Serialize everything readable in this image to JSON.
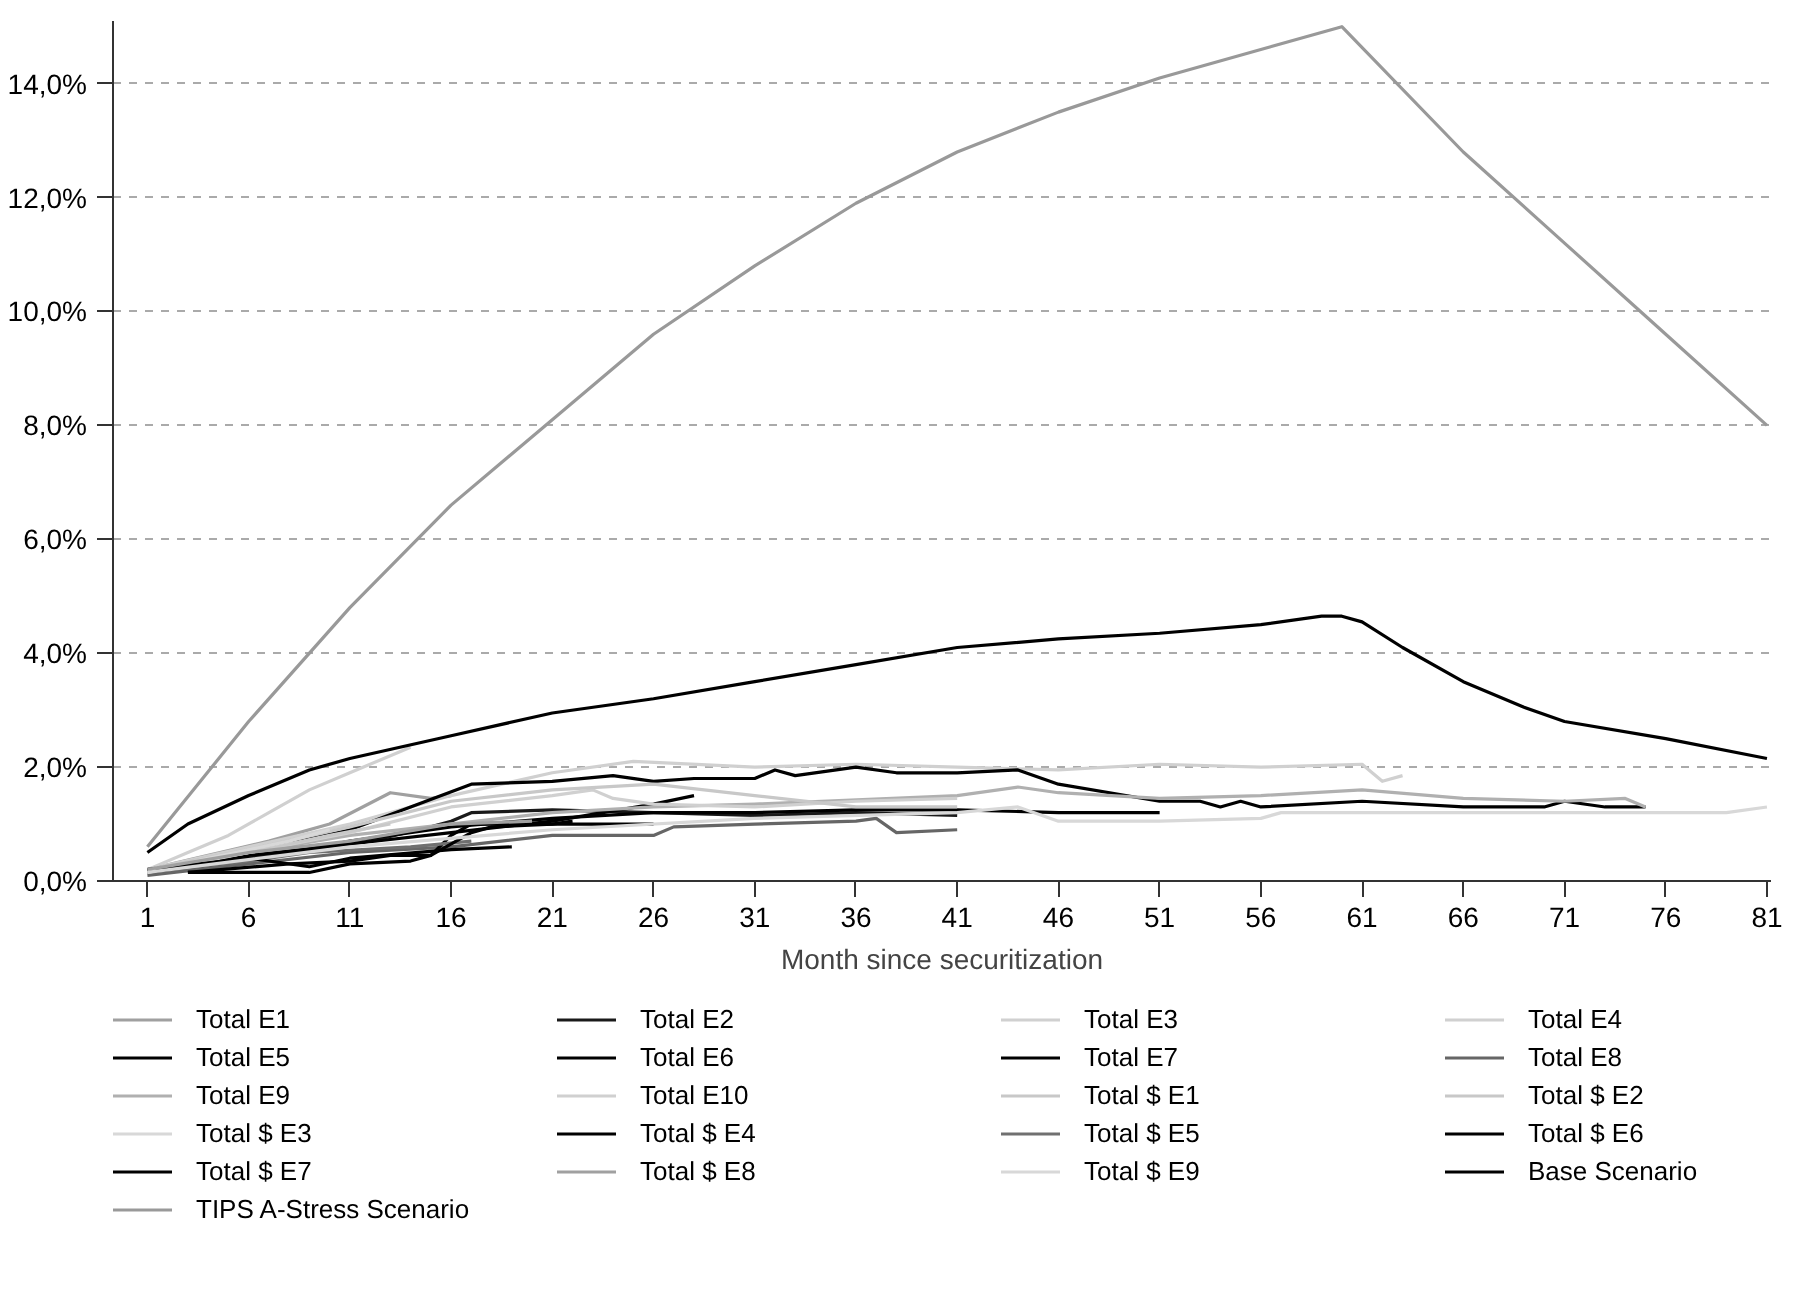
{
  "chart_data": {
    "type": "line",
    "xlabel": "Month since securitization",
    "xlim": [
      -0.7,
      81.2
    ],
    "ylim": [
      0,
      15.1
    ],
    "xticks": [
      1,
      6,
      11,
      16,
      21,
      26,
      31,
      36,
      41,
      46,
      51,
      56,
      61,
      66,
      71,
      76,
      81
    ],
    "yticks": [
      {
        "value": 0,
        "label": "0,0%"
      },
      {
        "value": 2,
        "label": "2,0%"
      },
      {
        "value": 4,
        "label": "4,0%"
      },
      {
        "value": 6,
        "label": "6,0%"
      },
      {
        "value": 8,
        "label": "8,0%"
      },
      {
        "value": 10,
        "label": "10,0%"
      },
      {
        "value": 12,
        "label": "12,0%"
      },
      {
        "value": 14,
        "label": "14,0%"
      }
    ],
    "grid": "y",
    "legend": "bottom",
    "line_style": "solid",
    "series": [
      {
        "name": "Total E1",
        "color": "#a0a0a0",
        "x": [
          1,
          4,
          7,
          10,
          13,
          15,
          16
        ],
        "values": [
          0.2,
          0.45,
          0.7,
          1.0,
          1.55,
          1.45,
          1.5
        ]
      },
      {
        "name": "Total E2",
        "color": "#1a1a1a",
        "x": [
          2,
          8,
          12,
          15,
          16,
          17,
          21,
          26,
          31,
          36,
          41
        ],
        "values": [
          0.2,
          0.5,
          0.7,
          0.95,
          1.05,
          1.2,
          1.25,
          1.2,
          1.15,
          1.2,
          1.15
        ]
      },
      {
        "name": "Total E3",
        "color": "#d0d0d0",
        "x": [
          1,
          3,
          5,
          7,
          9,
          11,
          14
        ],
        "values": [
          0.2,
          0.5,
          0.8,
          1.2,
          1.6,
          1.9,
          2.35
        ]
      },
      {
        "name": "Total E4",
        "color": "#d0d0d0",
        "x": [
          1,
          6,
          11,
          16,
          21,
          25,
          31,
          36,
          41,
          46,
          51,
          56,
          61,
          62,
          63
        ],
        "values": [
          0.2,
          0.6,
          1.0,
          1.5,
          1.9,
          2.1,
          2.0,
          2.05,
          2.0,
          1.95,
          2.05,
          2.0,
          2.05,
          1.75,
          1.85
        ]
      },
      {
        "name": "Total E5",
        "color": "#000000",
        "x": [
          1,
          6,
          11,
          14,
          17,
          21,
          24,
          26,
          28,
          31,
          32,
          33,
          36,
          38,
          41,
          44,
          46,
          51,
          53,
          54,
          55,
          56,
          61,
          66,
          70,
          71,
          73,
          75
        ],
        "values": [
          0.2,
          0.5,
          0.9,
          1.3,
          1.7,
          1.75,
          1.85,
          1.75,
          1.8,
          1.8,
          1.95,
          1.85,
          2.0,
          1.9,
          1.9,
          1.95,
          1.7,
          1.4,
          1.4,
          1.3,
          1.4,
          1.3,
          1.4,
          1.3,
          1.3,
          1.4,
          1.3,
          1.3
        ]
      },
      {
        "name": "Total E6",
        "color": "#000000",
        "x": [
          1,
          6,
          11,
          16,
          21,
          26,
          28
        ],
        "values": [
          0.2,
          0.45,
          0.65,
          0.85,
          1.05,
          1.35,
          1.5
        ]
      },
      {
        "name": "Total E7",
        "color": "#000000",
        "x": [
          1,
          6,
          11,
          16,
          21,
          26,
          31,
          36,
          41,
          46,
          51
        ],
        "values": [
          0.15,
          0.35,
          0.7,
          0.95,
          1.1,
          1.2,
          1.2,
          1.25,
          1.25,
          1.2,
          1.2
        ]
      },
      {
        "name": "Total E8",
        "color": "#666666",
        "x": [
          1,
          6,
          11,
          16,
          21,
          26,
          27,
          31,
          36,
          37,
          38,
          41
        ],
        "values": [
          0.1,
          0.3,
          0.5,
          0.6,
          0.8,
          0.8,
          0.95,
          1.0,
          1.05,
          1.1,
          0.85,
          0.9
        ]
      },
      {
        "name": "Total E9",
        "color": "#b0b0b0",
        "x": [
          1,
          11,
          21,
          26,
          31,
          41,
          44,
          46,
          51,
          56,
          61,
          66,
          71,
          74,
          75
        ],
        "values": [
          0.2,
          0.8,
          1.2,
          1.3,
          1.35,
          1.5,
          1.65,
          1.55,
          1.45,
          1.5,
          1.6,
          1.45,
          1.4,
          1.45,
          1.3
        ]
      },
      {
        "name": "Total E10",
        "color": "#d0d0d0",
        "x": [
          1,
          6,
          11,
          16,
          21,
          23,
          24,
          26,
          31,
          36,
          41
        ],
        "values": [
          0.15,
          0.5,
          0.85,
          1.3,
          1.5,
          1.6,
          1.45,
          1.35,
          1.3,
          1.4,
          1.45
        ]
      },
      {
        "name": "Total $ E1",
        "color": "#c8c8c8",
        "x": [
          1,
          6,
          11,
          16,
          21,
          26,
          31,
          36,
          41
        ],
        "values": [
          0.2,
          0.55,
          0.95,
          1.4,
          1.6,
          1.7,
          1.5,
          1.3,
          1.3
        ]
      },
      {
        "name": "Total $ E2",
        "color": "#c8c8c8",
        "x": [
          1,
          6,
          10,
          13
        ],
        "values": [
          0.2,
          0.5,
          0.8,
          1.0
        ]
      },
      {
        "name": "Total $ E3",
        "color": "#d8d8d8",
        "x": [
          1,
          4,
          8,
          10
        ],
        "values": [
          0.15,
          0.4,
          0.7,
          0.9
        ]
      },
      {
        "name": "Total $ E4",
        "color": "#000000",
        "x": [
          3,
          9,
          11,
          14,
          15,
          16,
          17,
          21,
          26
        ],
        "values": [
          0.15,
          0.15,
          0.3,
          0.35,
          0.45,
          0.8,
          1.0,
          1.0,
          1.0
        ]
      },
      {
        "name": "Total $ E5",
        "color": "#707070",
        "x": [
          2,
          6,
          9,
          14,
          17
        ],
        "values": [
          0.2,
          0.35,
          0.5,
          0.6,
          0.7
        ]
      },
      {
        "name": "Total $ E6",
        "color": "#000000",
        "x": [
          3,
          8,
          11,
          13,
          15,
          17,
          18,
          21,
          22
        ],
        "values": [
          0.15,
          0.3,
          0.35,
          0.45,
          0.45,
          0.85,
          0.95,
          1.0,
          1.05
        ]
      },
      {
        "name": "Total $ E7",
        "color": "#000000",
        "x": [
          1,
          6,
          9,
          11,
          16,
          19
        ],
        "values": [
          0.2,
          0.4,
          0.25,
          0.4,
          0.55,
          0.6
        ]
      },
      {
        "name": "Total $ E8",
        "color": "#a0a0a0",
        "x": [
          1,
          6,
          11,
          16,
          20
        ],
        "values": [
          0.2,
          0.5,
          0.7,
          1.0,
          1.05
        ]
      },
      {
        "name": "Total $ E9",
        "color": "#d8d8d8",
        "x": [
          1,
          11,
          21,
          31,
          41,
          44,
          46,
          51,
          56,
          57,
          61,
          71,
          76,
          79,
          81
        ],
        "values": [
          0.15,
          0.6,
          0.9,
          1.1,
          1.2,
          1.3,
          1.05,
          1.05,
          1.1,
          1.2,
          1.2,
          1.2,
          1.2,
          1.2,
          1.3
        ]
      },
      {
        "name": "Base Scenario",
        "color": "#000000",
        "x": [
          1,
          3,
          6,
          9,
          11,
          16,
          21,
          26,
          31,
          36,
          41,
          46,
          51,
          56,
          59,
          60,
          61,
          63,
          66,
          69,
          71,
          76,
          81
        ],
        "values": [
          0.5,
          1.0,
          1.5,
          1.95,
          2.15,
          2.55,
          2.95,
          3.2,
          3.5,
          3.8,
          4.1,
          4.25,
          4.35,
          4.5,
          4.65,
          4.65,
          4.55,
          4.1,
          3.5,
          3.05,
          2.8,
          2.5,
          2.15
        ]
      },
      {
        "name": "TIPS A-Stress Scenario",
        "color": "#999999",
        "x": [
          1,
          6,
          11,
          16,
          21,
          26,
          31,
          36,
          41,
          46,
          51,
          56,
          60,
          66,
          71,
          76,
          81
        ],
        "values": [
          0.6,
          2.8,
          4.8,
          6.6,
          8.1,
          9.6,
          10.8,
          11.9,
          12.8,
          13.5,
          14.1,
          14.6,
          15.0,
          12.8,
          11.2,
          9.6,
          8.0
        ]
      }
    ]
  }
}
